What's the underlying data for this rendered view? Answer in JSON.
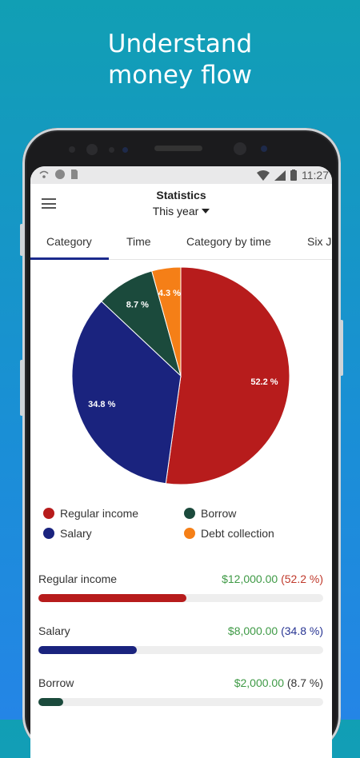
{
  "headline": {
    "line1": "Understand",
    "line2": "money flow"
  },
  "status_bar": {
    "time": "11:27"
  },
  "app_bar": {
    "title": "Statistics",
    "period": "This year"
  },
  "tabs": [
    "Category",
    "Time",
    "Category by time",
    "Six J"
  ],
  "active_tab": "Category",
  "chart_data": {
    "type": "pie",
    "slices": [
      {
        "name": "Regular income",
        "value": 52.2,
        "label": "52.2 %",
        "color": "#b71c1c"
      },
      {
        "name": "Salary",
        "value": 34.8,
        "label": "34.8 %",
        "color": "#1a237e"
      },
      {
        "name": "Borrow",
        "value": 8.7,
        "label": "8.7 %",
        "color": "#1b4a3c"
      },
      {
        "name": "Debt collection",
        "value": 4.3,
        "label": "4.3 %",
        "color": "#f57f17"
      }
    ]
  },
  "legend": [
    {
      "label": "Regular income",
      "color": "#b71c1c"
    },
    {
      "label": "Borrow",
      "color": "#1b4a3c"
    },
    {
      "label": "Salary",
      "color": "#1a237e"
    },
    {
      "label": "Debt collection",
      "color": "#f57f17"
    }
  ],
  "rows": [
    {
      "label": "Regular income",
      "amount": "$12,000.00",
      "percent": "(52.2 %)",
      "percent_color": "#c0392b",
      "bar_color": "#b71c1c",
      "fraction": 0.52
    },
    {
      "label": "Salary",
      "amount": "$8,000.00",
      "percent": "(34.8 %)",
      "percent_color": "#283593",
      "bar_color": "#1a237e",
      "fraction": 0.345
    },
    {
      "label": "Borrow",
      "amount": "$2,000.00",
      "percent": "(8.7 %)",
      "percent_color": "#333333",
      "bar_color": "#1b4a3c",
      "fraction": 0.087
    }
  ]
}
